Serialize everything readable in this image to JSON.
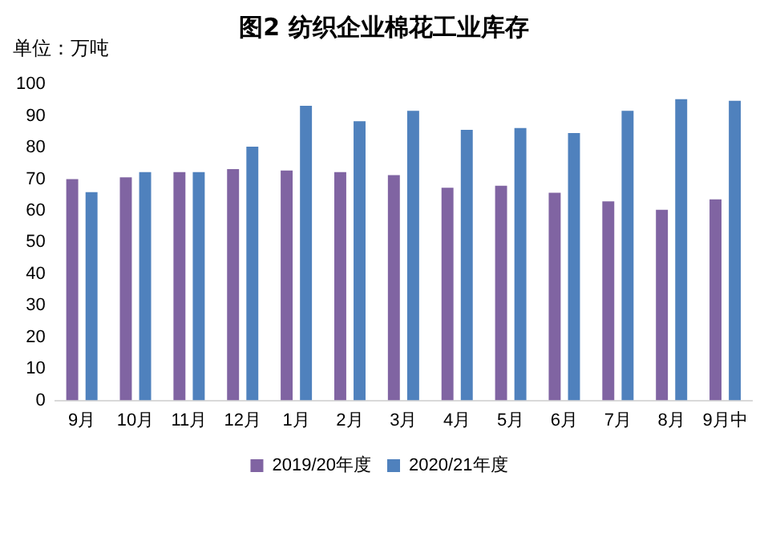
{
  "chart_data": {
    "type": "bar",
    "title": "图2 纺织企业棉花工业库存",
    "ylabel": "单位：万吨",
    "categories": [
      "9月",
      "10月",
      "11月",
      "12月",
      "1月",
      "2月",
      "3月",
      "4月",
      "5月",
      "6月",
      "7月",
      "8月",
      "9月中"
    ],
    "series": [
      {
        "name": "2019/20年度",
        "color": "#8064a2",
        "values": [
          70,
          70.6,
          72.2,
          73.2,
          72.7,
          72.2,
          71.3,
          67.3,
          67.9,
          65.7,
          63,
          60.3,
          63.6
        ]
      },
      {
        "name": "2020/21年度",
        "color": "#4f81bd",
        "values": [
          65.9,
          72.2,
          72.2,
          80.3,
          93.2,
          88.3,
          91.6,
          85.6,
          86.2,
          84.6,
          91.6,
          95.3,
          94.8
        ]
      }
    ],
    "ylim": [
      0,
      100
    ],
    "yticks": [
      0,
      10,
      20,
      30,
      40,
      50,
      60,
      70,
      80,
      90,
      100
    ],
    "grid": false,
    "legend": "bottom"
  }
}
